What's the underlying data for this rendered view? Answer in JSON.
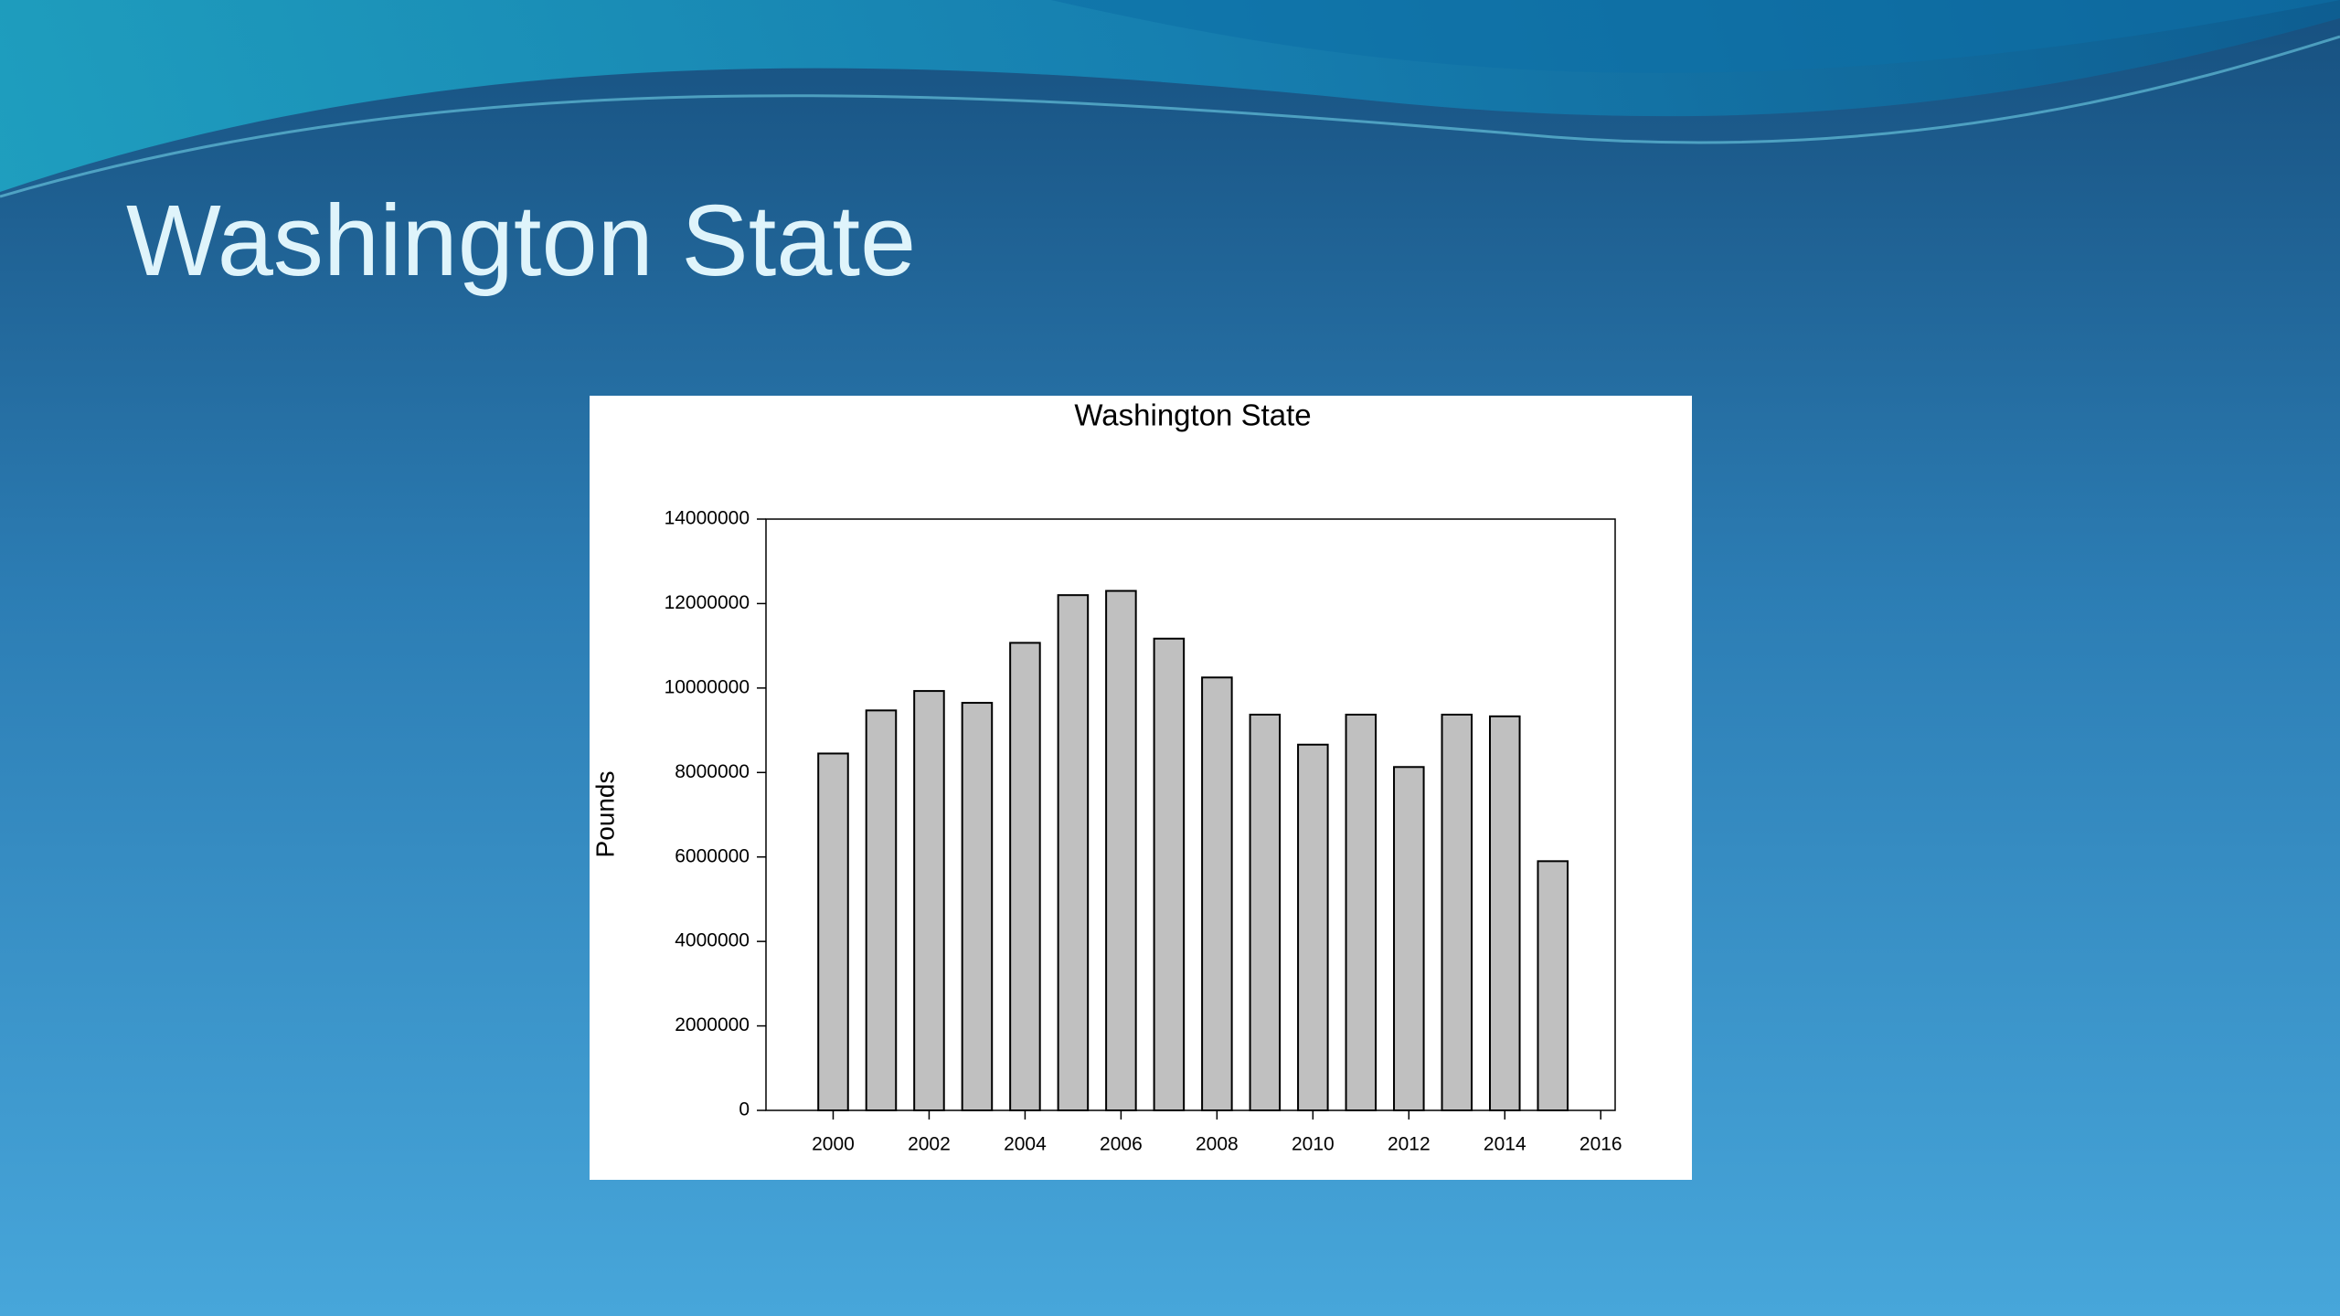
{
  "slide": {
    "title": "Washington State"
  },
  "chart_data": {
    "type": "bar",
    "title": "Washington State",
    "y_label": "Pounds",
    "x": [
      2000,
      2001,
      2002,
      2003,
      2004,
      2005,
      2006,
      2007,
      2008,
      2009,
      2010,
      2011,
      2012,
      2013,
      2014,
      2015
    ],
    "values": [
      8450000,
      9470000,
      9930000,
      9650000,
      11070000,
      12200000,
      12300000,
      11170000,
      10250000,
      9370000,
      8660000,
      9370000,
      8130000,
      9370000,
      9330000,
      5900000
    ],
    "color": "#c0c0c0",
    "xlim": [
      1998.6,
      2016.3
    ],
    "xticks": [
      2000,
      2002,
      2004,
      2006,
      2008,
      2010,
      2012,
      2014,
      2016
    ],
    "ylim": [
      0,
      14000000
    ],
    "yticks": [
      0,
      2000000,
      4000000,
      6000000,
      8000000,
      10000000,
      12000000,
      14000000
    ]
  }
}
